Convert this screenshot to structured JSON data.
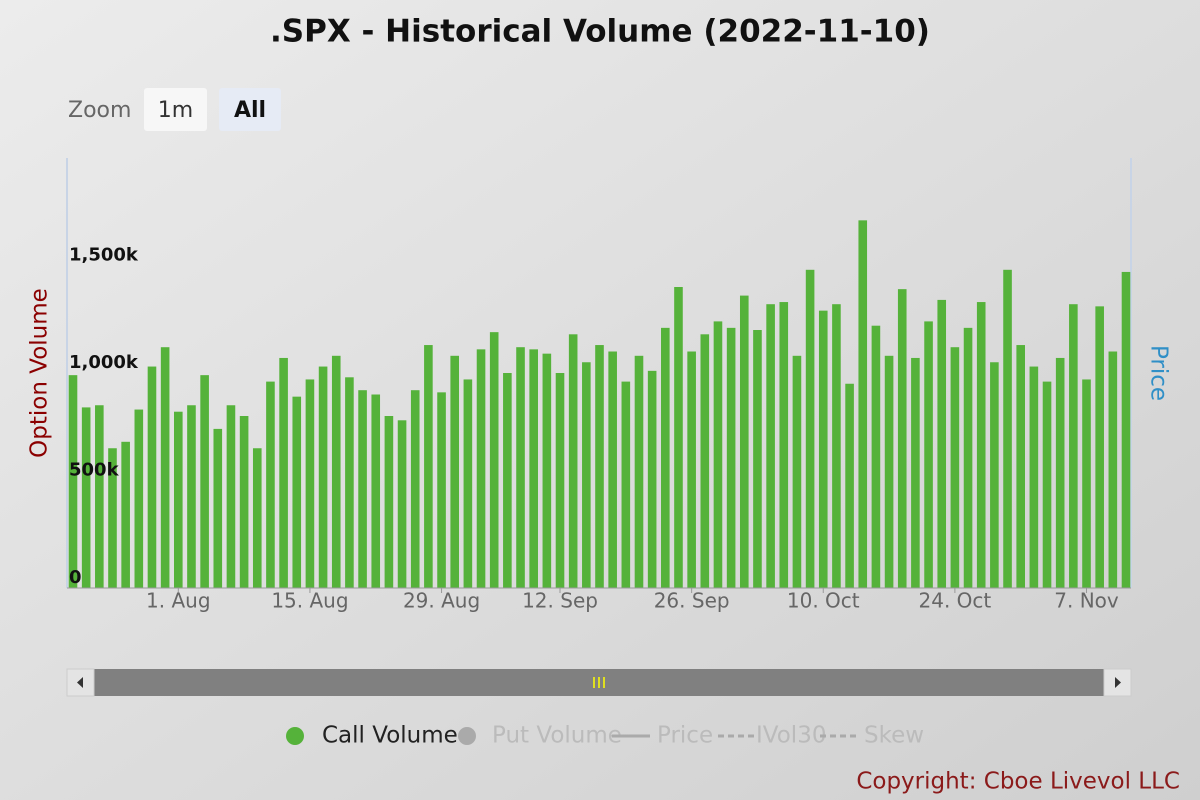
{
  "chart_data": {
    "type": "bar",
    "title": ".SPX - Historical Volume (2022-11-10)",
    "zoom_label": "Zoom",
    "zoom_buttons": [
      "1m",
      "All"
    ],
    "y_label": "Option Volume",
    "y2_label": "Price",
    "copyright": "Copyright: Cboe Livevol LLC",
    "categories": [
      null,
      null,
      null,
      null,
      null,
      null,
      null,
      null,
      "1. Aug",
      null,
      null,
      null,
      null,
      null,
      null,
      null,
      null,
      null,
      "15. Aug",
      null,
      null,
      null,
      null,
      null,
      null,
      null,
      null,
      null,
      "29. Aug",
      null,
      null,
      null,
      null,
      null,
      null,
      null,
      null,
      "12. Sep",
      null,
      null,
      null,
      null,
      null,
      null,
      null,
      null,
      null,
      "26. Sep",
      null,
      null,
      null,
      null,
      null,
      null,
      null,
      null,
      null,
      "10. Oct",
      null,
      null,
      null,
      null,
      null,
      null,
      null,
      null,
      null,
      "24. Oct",
      null,
      null,
      null,
      null,
      null,
      null,
      null,
      null,
      null,
      "7. Nov",
      null,
      null,
      null
    ],
    "series": [
      {
        "name": "Call Volume",
        "color": "#55b23a",
        "values": [
          990,
          840,
          850,
          650,
          680,
          830,
          1030,
          1120,
          820,
          850,
          990,
          740,
          850,
          800,
          650,
          960,
          1070,
          890,
          970,
          1030,
          1080,
          980,
          920,
          900,
          800,
          780,
          920,
          1130,
          910,
          1080,
          970,
          1110,
          1190,
          1000,
          1120,
          1110,
          1090,
          1000,
          1180,
          1050,
          1130,
          1100,
          960,
          1080,
          1010,
          1210,
          1400,
          1100,
          1180,
          1240,
          1210,
          1360,
          1200,
          1320,
          1330,
          1080,
          1480,
          1290,
          1320,
          950,
          1710,
          1220,
          1080,
          1390,
          1070,
          1240,
          1340,
          1120,
          1210,
          1330,
          1050,
          1480,
          1130,
          1030,
          960,
          1070,
          1320,
          970,
          1310,
          1100,
          1470
        ]
      }
    ],
    "legend_items": [
      {
        "name": "Put Volume",
        "marker": "circle",
        "color": "#aaaaaa"
      },
      {
        "name": "Price",
        "marker": "line",
        "color": "#aaaaaa"
      },
      {
        "name": "IVol30",
        "marker": "dash",
        "color": "#aaaaaa"
      },
      {
        "name": "Skew",
        "marker": "dash",
        "color": "#aaaaaa"
      }
    ],
    "ylim": [
      0,
      2000
    ],
    "yticks": [
      0,
      {
        "value": 500,
        "label": "500k"
      },
      {
        "value": 1000,
        "label": "1,000k"
      },
      {
        "value": 1500,
        "label": "1,500k"
      }
    ],
    "grid": false
  }
}
